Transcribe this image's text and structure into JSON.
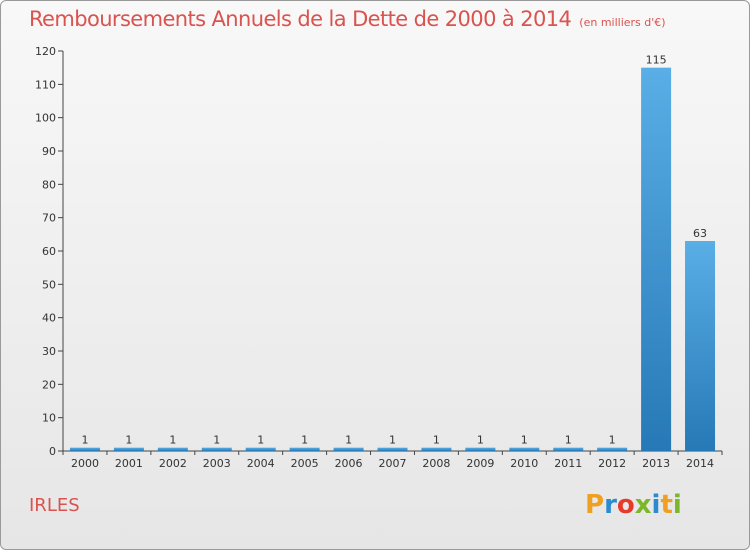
{
  "title": "Remboursements Annuels de la Dette de 2000 à 2014",
  "unit_note": "(en milliers d'€)",
  "city": "IRLES",
  "brand": {
    "letters": [
      "P",
      "r",
      "o",
      "x",
      "i",
      "t",
      "i"
    ]
  },
  "colors": {
    "accent": "#d9534f",
    "bar_top": "#5aaee6",
    "bar_bottom": "#2679b6",
    "brand": [
      "#f0a020",
      "#2b8ad0",
      "#e63a2a",
      "#7ab829",
      "#2b8ad0",
      "#f0a020",
      "#7ab829"
    ]
  },
  "chart_data": {
    "type": "bar",
    "title": "Remboursements Annuels de la Dette de 2000 à 2014",
    "ylabel": "en milliers d'€",
    "xlabel": "",
    "ylim": [
      0,
      120
    ],
    "yticks": [
      0,
      10,
      20,
      30,
      40,
      50,
      60,
      70,
      80,
      90,
      100,
      110,
      120
    ],
    "grid": false,
    "categories": [
      "2000",
      "2001",
      "2002",
      "2003",
      "2004",
      "2005",
      "2006",
      "2007",
      "2008",
      "2009",
      "2010",
      "2011",
      "2012",
      "2013",
      "2014"
    ],
    "values": [
      1,
      1,
      1,
      1,
      1,
      1,
      1,
      1,
      1,
      1,
      1,
      1,
      1,
      115,
      63
    ]
  }
}
